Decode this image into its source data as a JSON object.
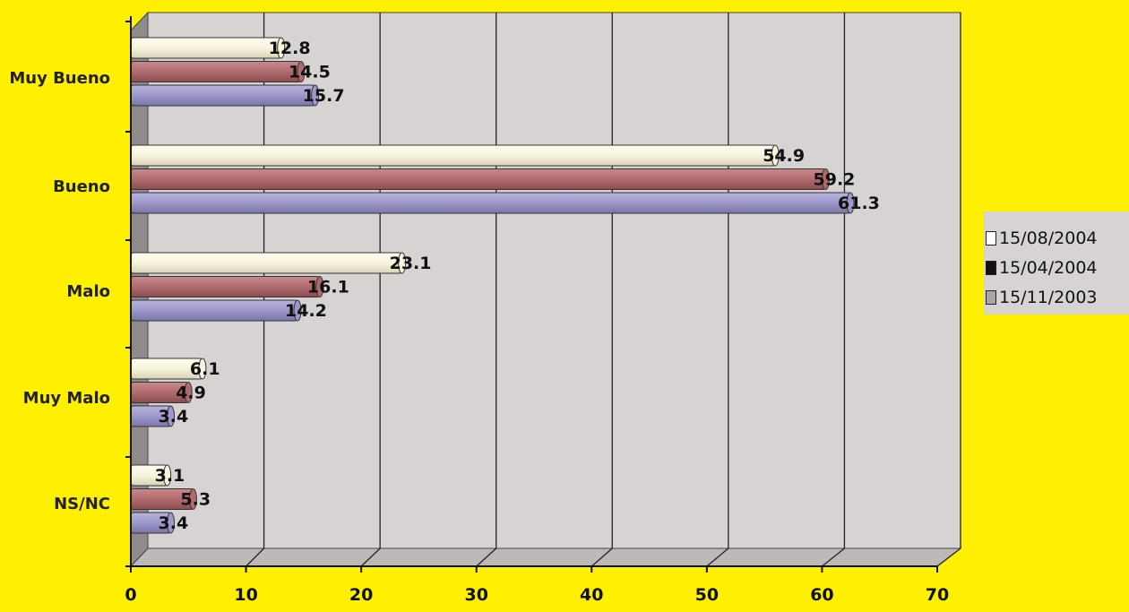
{
  "chart_data": {
    "type": "bar",
    "orientation": "horizontal",
    "categories": [
      "Muy Bueno",
      "Bueno",
      "Malo",
      "Muy Malo",
      "NS/NC"
    ],
    "series": [
      {
        "name": "15/08/2004",
        "color": "#f7f3dd",
        "values": [
          12.8,
          54.9,
          23.1,
          6.1,
          3.1
        ]
      },
      {
        "name": "15/04/2004",
        "color": "#b06b6e",
        "values": [
          14.5,
          59.2,
          16.1,
          4.9,
          5.3
        ]
      },
      {
        "name": "15/11/2003",
        "color": "#9d98c9",
        "values": [
          15.7,
          61.3,
          14.2,
          3.4,
          3.4
        ]
      }
    ],
    "data_labels": [
      [
        "12.8",
        "54.9",
        "23.1",
        "6.1",
        "3.1"
      ],
      [
        "14.5",
        "59.2",
        "16.1",
        "4.9",
        "5.3"
      ],
      [
        "15.7",
        "61.3",
        "14.2",
        "3.4",
        "3.4"
      ]
    ],
    "xlim": [
      0,
      70
    ],
    "xticks": [
      "0",
      "10",
      "20",
      "30",
      "40",
      "50",
      "60",
      "70"
    ],
    "grid": true,
    "legend_position": "right",
    "legend_swatch_colors": [
      "#ffffff",
      "#111111",
      "#a9a5a5"
    ],
    "background_color": "#ffef00",
    "plot_color": "#d7d3d3"
  }
}
